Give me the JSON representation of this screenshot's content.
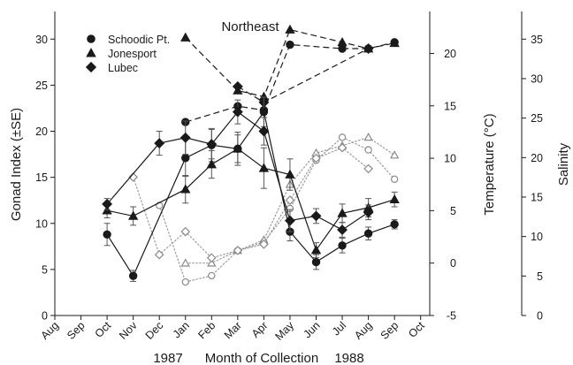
{
  "chart_data": {
    "type": "line",
    "title": "Northeast",
    "xlabel": "Month of Collection",
    "year_labels": [
      "1987",
      "1988"
    ],
    "x_tick_labels": [
      "Aug",
      "Sep",
      "Oct",
      "Nov",
      "Dec",
      "Jan",
      "Feb",
      "Mar",
      "Apr",
      "May",
      "Jun",
      "Jul",
      "Aug",
      "Sep",
      "Oct"
    ],
    "axes": {
      "left": {
        "label": "Gonad Index (±SE)",
        "lim": [
          0,
          33
        ],
        "ticks": [
          0,
          5,
          10,
          15,
          20,
          25,
          30
        ]
      },
      "right1": {
        "label": "Temperature (°C)",
        "lim": [
          -5,
          24
        ],
        "ticks": [
          -5,
          0,
          5,
          10,
          15,
          20
        ]
      },
      "right2": {
        "label": "Salinity",
        "lim": [
          0,
          38.5
        ],
        "ticks": [
          0,
          5,
          10,
          15,
          20,
          25,
          30,
          35
        ]
      }
    },
    "legend": {
      "position": "top-left",
      "entries": [
        {
          "label": "Schoodic Pt.",
          "marker": "circle"
        },
        {
          "label": "Jonesport",
          "marker": "triangle"
        },
        {
          "label": "Lubec",
          "marker": "diamond"
        }
      ]
    },
    "series": [
      {
        "name": "Schoodic Pt.",
        "kind": "gonad_index",
        "axis": "left",
        "marker": "circle",
        "filled": true,
        "line": "solid",
        "x": [
          2,
          3,
          5,
          6,
          7,
          8,
          9,
          10,
          11,
          12,
          13
        ],
        "y": [
          8.8,
          4.3,
          17.1,
          18.5,
          18.1,
          22.1,
          9.1,
          5.8,
          7.6,
          8.9,
          9.9
        ],
        "err": [
          1.2,
          0.6,
          2.0,
          1.8,
          1.5,
          1.6,
          1.0,
          0.8,
          0.8,
          0.7,
          0.5
        ]
      },
      {
        "name": "Jonesport",
        "kind": "gonad_index",
        "axis": "left",
        "marker": "triangle",
        "filled": true,
        "line": "solid",
        "x": [
          2,
          3,
          5,
          6,
          7,
          8,
          9,
          10,
          11,
          12,
          13
        ],
        "y": [
          11.4,
          10.8,
          13.7,
          16.4,
          18.1,
          16.0,
          15.3,
          7.1,
          11.1,
          11.7,
          12.6
        ],
        "err": [
          0.8,
          1.0,
          1.5,
          1.5,
          1.8,
          2.2,
          1.7,
          0.8,
          1.0,
          1.0,
          0.8
        ]
      },
      {
        "name": "Lubec",
        "kind": "gonad_index",
        "axis": "left",
        "marker": "diamond",
        "filled": true,
        "line": "solid",
        "x": [
          2,
          4,
          5,
          6,
          7,
          8,
          9,
          10,
          11,
          12
        ],
        "y": [
          12.1,
          18.7,
          19.3,
          18.6,
          22.1,
          20.0,
          10.3,
          10.8,
          9.3,
          11.2
        ],
        "err": [
          0.6,
          1.3,
          1.8,
          1.6,
          1.3,
          1.5,
          1.2,
          0.8,
          0.8,
          0.8
        ]
      },
      {
        "name": "Schoodic Pt.",
        "kind": "temperature",
        "axis": "right1",
        "marker": "circle",
        "filled": false,
        "line": "dotted",
        "x": [
          4,
          5,
          6,
          7,
          8,
          9,
          10,
          11,
          12,
          13
        ],
        "y": [
          5.5,
          -1.8,
          -1.2,
          1.2,
          2.0,
          5.2,
          9.8,
          12.0,
          10.8,
          8.0
        ]
      },
      {
        "name": "Jonesport",
        "kind": "temperature",
        "axis": "right1",
        "marker": "triangle",
        "filled": false,
        "line": "dotted",
        "x": [
          5,
          6,
          7,
          8,
          9,
          10,
          11,
          12,
          13
        ],
        "y": [
          0.0,
          0.0,
          1.2,
          2.2,
          7.5,
          10.5,
          11.2,
          12.0,
          10.3
        ]
      },
      {
        "name": "Lubec",
        "kind": "temperature",
        "axis": "right1",
        "marker": "diamond",
        "filled": false,
        "line": "dotted",
        "x": [
          3,
          4,
          5,
          6,
          7,
          8,
          9,
          10,
          11,
          12
        ],
        "y": [
          8.2,
          0.8,
          3.0,
          0.5,
          1.2,
          1.8,
          6.0,
          10.0,
          11.0,
          9.0
        ]
      },
      {
        "name": "Schoodic Pt.",
        "kind": "salinity",
        "axis": "right2",
        "marker": "circle",
        "filled": true,
        "line": "dashed",
        "x": [
          5,
          7,
          8,
          9,
          11,
          12,
          13
        ],
        "y": [
          24.5,
          26.5,
          26.0,
          34.3,
          33.8,
          33.8,
          34.6
        ]
      },
      {
        "name": "Jonesport",
        "kind": "salinity",
        "axis": "right2",
        "marker": "triangle",
        "filled": true,
        "line": "dashed",
        "x": [
          5,
          7,
          8,
          9,
          11,
          12,
          13
        ],
        "y": [
          35.2,
          28.5,
          27.7,
          36.2,
          34.6,
          33.8,
          34.5
        ]
      },
      {
        "name": "Lubec",
        "kind": "salinity",
        "axis": "right2",
        "marker": "diamond",
        "filled": true,
        "line": "dashed",
        "x": [
          7,
          8,
          12
        ],
        "y": [
          29.0,
          27.0,
          33.8
        ]
      }
    ],
    "grid": false
  }
}
